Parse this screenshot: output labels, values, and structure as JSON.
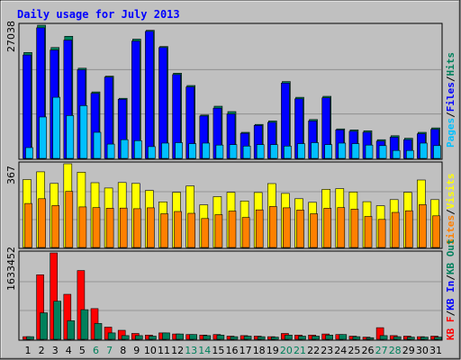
{
  "title": "Daily usage for July 2013",
  "colors": {
    "frame_bg": "#c0c0c0",
    "title": "#0000ff",
    "hits": "#00805c",
    "files": "#0000ff",
    "pages": "#00c0ff",
    "visits": "#ffff00",
    "sites": "#ff8000",
    "kb_out": "#ff8000",
    "kb_f": "#ff0000",
    "kb_in": "#0000ff",
    "kb_r": "#00805c",
    "weekend_day": "#00805c",
    "weekday": "#000000",
    "gridline": "#888888"
  },
  "chart_data": [
    {
      "type": "bar",
      "panel": "top",
      "ymax_label": "27038",
      "ylim": [
        0,
        27038
      ],
      "legend": {
        "pages": "Pages",
        "files": "Files",
        "hits": "Hits",
        "sep": "/"
      },
      "categories": [
        "1",
        "2",
        "3",
        "4",
        "5",
        "6",
        "7",
        "8",
        "9",
        "10",
        "11",
        "12",
        "13",
        "14",
        "15",
        "16",
        "17",
        "18",
        "19",
        "20",
        "21",
        "22",
        "23",
        "24",
        "25",
        "26",
        "27",
        "28",
        "29",
        "30",
        "31"
      ],
      "weekend": [
        6,
        7,
        13,
        14,
        20,
        21,
        27,
        28
      ],
      "series": [
        {
          "name": "Hits",
          "values": [
            21500,
            27038,
            22500,
            24800,
            18300,
            13500,
            16700,
            12200,
            24200,
            26000,
            22700,
            17300,
            14800,
            8800,
            10600,
            9500,
            5300,
            6900,
            7600,
            15600,
            12400,
            7900,
            12600,
            6000,
            5800,
            5600,
            3800,
            4600,
            4100,
            5300,
            6200
          ]
        },
        {
          "name": "Files",
          "values": [
            21000,
            26500,
            22000,
            24000,
            18000,
            13200,
            16500,
            12000,
            23800,
            25800,
            22500,
            17000,
            14500,
            8600,
            10200,
            9000,
            5100,
            6700,
            7300,
            15300,
            12100,
            7600,
            12300,
            5800,
            5500,
            5300,
            3500,
            4300,
            3800,
            5000,
            5900
          ]
        },
        {
          "name": "Pages",
          "values": [
            2200,
            8400,
            12400,
            8700,
            10700,
            5300,
            2900,
            3800,
            3600,
            2400,
            3100,
            3200,
            3000,
            3100,
            2700,
            2800,
            2500,
            2800,
            2800,
            2500,
            3000,
            3200,
            2800,
            3100,
            3000,
            2700,
            2600,
            1600,
            1600,
            3100,
            2600
          ]
        }
      ]
    },
    {
      "type": "bar",
      "panel": "middle",
      "ymax_label": "367",
      "ylim": [
        0,
        367
      ],
      "legend": {
        "sites": "Sites",
        "visits": "Visits",
        "sep": "/"
      },
      "categories": [
        "1",
        "2",
        "3",
        "4",
        "5",
        "6",
        "7",
        "8",
        "9",
        "10",
        "11",
        "12",
        "13",
        "14",
        "15",
        "16",
        "17",
        "18",
        "19",
        "20",
        "21",
        "22",
        "23",
        "24",
        "25",
        "26",
        "27",
        "28",
        "29",
        "30",
        "31"
      ],
      "series": [
        {
          "name": "Visits",
          "values": [
            298,
            332,
            281,
            367,
            330,
            284,
            261,
            285,
            281,
            250,
            200,
            242,
            270,
            187,
            223,
            242,
            204,
            241,
            280,
            237,
            214,
            198,
            255,
            258,
            243,
            201,
            183,
            210,
            242,
            296,
            210
          ]
        },
        {
          "name": "Sites",
          "values": [
            193,
            214,
            184,
            246,
            178,
            175,
            172,
            173,
            170,
            174,
            148,
            158,
            150,
            127,
            144,
            160,
            132,
            165,
            180,
            174,
            164,
            148,
            172,
            175,
            168,
            136,
            123,
            154,
            161,
            188,
            139
          ]
        }
      ]
    },
    {
      "type": "bar",
      "panel": "bottom",
      "ymax_label": "1633452",
      "ylim": [
        0,
        1633452
      ],
      "legend": {
        "kb_f": "KB F",
        "kb_in": "KB In",
        "kb_out": "KB Out",
        "sep": "/"
      },
      "categories": [
        "1",
        "2",
        "3",
        "4",
        "5",
        "6",
        "7",
        "8",
        "9",
        "10",
        "11",
        "12",
        "13",
        "14",
        "15",
        "16",
        "17",
        "18",
        "19",
        "20",
        "21",
        "22",
        "23",
        "24",
        "25",
        "26",
        "27",
        "28",
        "29",
        "30",
        "31"
      ],
      "series": [
        {
          "name": "KB F",
          "values": [
            50000,
            1220000,
            1633452,
            850000,
            1300000,
            580000,
            230000,
            170000,
            110000,
            80000,
            120000,
            100000,
            90000,
            80000,
            90000,
            60000,
            70000,
            60000,
            50000,
            110000,
            80000,
            80000,
            100000,
            90000,
            60000,
            40000,
            220000,
            70000,
            60000,
            50000,
            60000
          ]
        },
        {
          "name": "KB In",
          "values": [
            50000,
            500000,
            720000,
            350000,
            560000,
            300000,
            120000,
            70000,
            70000,
            60000,
            120000,
            100000,
            90000,
            70000,
            80000,
            50000,
            60000,
            50000,
            40000,
            80000,
            60000,
            60000,
            80000,
            90000,
            50000,
            30000,
            70000,
            50000,
            40000,
            40000,
            40000
          ]
        }
      ]
    }
  ]
}
